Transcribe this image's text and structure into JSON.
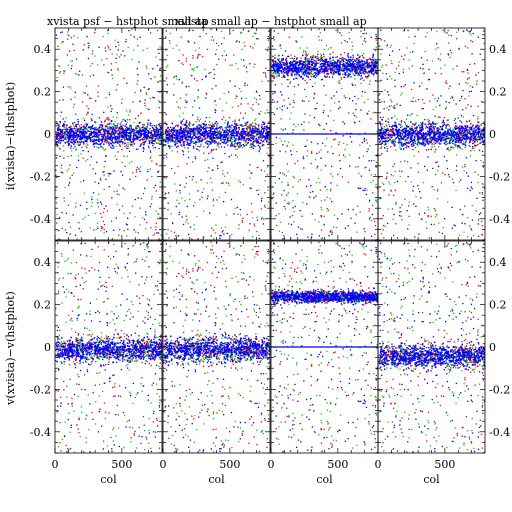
{
  "chart_data": {
    "type": "scatter",
    "titles": [
      "xvista psf − hstphot small ap",
      "xvista small ap − hstphot small ap"
    ],
    "row_labels": [
      "i(xvista)−i(hstphot)",
      "v(xvista)−v(hstphot)"
    ],
    "xlabel": "col",
    "xlim": [
      0,
      800
    ],
    "ylim": [
      -0.5,
      0.5
    ],
    "x_ticks": [
      "0",
      "500"
    ],
    "y_ticks_left": [
      "-0.4",
      "-0.2",
      "0",
      "0.2",
      "0.4"
    ],
    "y_ticks_right": [
      "0.4",
      "0.2",
      "0",
      "-0.2",
      "-0.4"
    ],
    "series_colors": [
      "#0000ff",
      "#00cc00",
      "#ff0000"
    ],
    "grid": false,
    "legend": "none",
    "panels": [
      {
        "row": 0,
        "col": 0,
        "center": 0.0,
        "spread": 0.03
      },
      {
        "row": 0,
        "col": 1,
        "center": 0.0,
        "spread": 0.03
      },
      {
        "row": 0,
        "col": 2,
        "center": 0.32,
        "spread": 0.025,
        "flat_line": 0.0
      },
      {
        "row": 0,
        "col": 3,
        "center": 0.0,
        "spread": 0.03
      },
      {
        "row": 1,
        "col": 0,
        "center": -0.01,
        "spread": 0.03
      },
      {
        "row": 1,
        "col": 1,
        "center": -0.01,
        "spread": 0.03
      },
      {
        "row": 1,
        "col": 2,
        "center": 0.24,
        "spread": 0.015,
        "flat_line": 0.0
      },
      {
        "row": 1,
        "col": 3,
        "center": -0.04,
        "spread": 0.03
      }
    ]
  }
}
